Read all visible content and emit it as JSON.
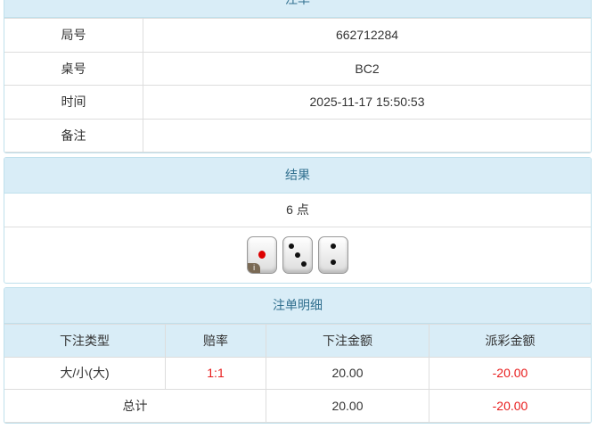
{
  "order": {
    "title": "注单",
    "rows": [
      {
        "label": "局号",
        "value": "662712284"
      },
      {
        "label": "桌号",
        "value": "BC2"
      },
      {
        "label": "时间",
        "value": "2025-11-17 15:50:53"
      },
      {
        "label": "备注",
        "value": ""
      }
    ]
  },
  "result": {
    "title": "结果",
    "points": "6 点",
    "dice": [
      1,
      3,
      2
    ]
  },
  "detail": {
    "title": "注单明细",
    "headers": [
      "下注类型",
      "赔率",
      "下注金额",
      "派彩金额"
    ],
    "row": {
      "type": "大/小(大)",
      "odds": "1:1",
      "amount": "20.00",
      "payout": "-20.00"
    },
    "total": {
      "label": "总计",
      "amount": "20.00",
      "payout": "-20.00"
    },
    "negative_color": "#e81c1c"
  }
}
